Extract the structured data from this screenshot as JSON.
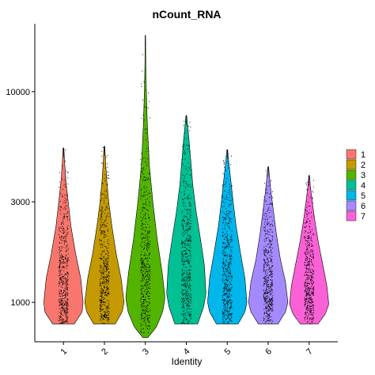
{
  "chart_data": {
    "type": "violin",
    "title": "nCount_RNA",
    "xlabel": "Identity",
    "ylabel": "",
    "y_scale": "log10",
    "ylim": [
      650,
      21000
    ],
    "y_ticks": [
      {
        "value": 1000,
        "label": "1000"
      },
      {
        "value": 3000,
        "label": "3000"
      },
      {
        "value": 10000,
        "label": "10000"
      }
    ],
    "categories": [
      "1",
      "2",
      "3",
      "4",
      "5",
      "6",
      "7"
    ],
    "colors": [
      "#F8766D",
      "#C49A00",
      "#53B400",
      "#00C094",
      "#00B6EB",
      "#A58AFF",
      "#FB61D7"
    ],
    "legend_position": "right",
    "grid": false,
    "series": [
      {
        "min": 790,
        "max": 5400,
        "points_max": 5400,
        "density": [
          [
            790,
            0.55
          ],
          [
            900,
            0.95
          ],
          [
            1000,
            1.0
          ],
          [
            1300,
            0.88
          ],
          [
            1700,
            0.62
          ],
          [
            2300,
            0.38
          ],
          [
            3000,
            0.24
          ],
          [
            3800,
            0.12
          ],
          [
            4600,
            0.06
          ],
          [
            5400,
            0.02
          ]
        ]
      },
      {
        "min": 790,
        "max": 5500,
        "points_max": 5500,
        "density": [
          [
            790,
            0.55
          ],
          [
            900,
            0.9
          ],
          [
            1000,
            1.0
          ],
          [
            1300,
            0.85
          ],
          [
            1700,
            0.6
          ],
          [
            2300,
            0.38
          ],
          [
            3000,
            0.22
          ],
          [
            3800,
            0.12
          ],
          [
            4600,
            0.06
          ],
          [
            5500,
            0.02
          ]
        ]
      },
      {
        "min": 680,
        "max": 18500,
        "points_max": 18500,
        "density": [
          [
            680,
            0.12
          ],
          [
            760,
            0.55
          ],
          [
            900,
            0.88
          ],
          [
            1050,
            1.0
          ],
          [
            1400,
            0.85
          ],
          [
            2000,
            0.6
          ],
          [
            3000,
            0.38
          ],
          [
            4500,
            0.2
          ],
          [
            7000,
            0.1
          ],
          [
            10000,
            0.05
          ],
          [
            14000,
            0.02
          ],
          [
            18500,
            0.01
          ]
        ]
      },
      {
        "min": 790,
        "max": 7700,
        "points_max": 7700,
        "density": [
          [
            790,
            0.58
          ],
          [
            950,
            0.88
          ],
          [
            1100,
            1.0
          ],
          [
            1500,
            0.92
          ],
          [
            2000,
            0.72
          ],
          [
            2700,
            0.5
          ],
          [
            3600,
            0.33
          ],
          [
            4800,
            0.22
          ],
          [
            6000,
            0.13
          ],
          [
            7000,
            0.06
          ],
          [
            7700,
            0.02
          ]
        ]
      },
      {
        "min": 790,
        "max": 5300,
        "points_max": 5300,
        "density": [
          [
            790,
            0.55
          ],
          [
            900,
            0.9
          ],
          [
            1000,
            1.0
          ],
          [
            1300,
            0.9
          ],
          [
            1700,
            0.68
          ],
          [
            2300,
            0.45
          ],
          [
            3000,
            0.3
          ],
          [
            3800,
            0.18
          ],
          [
            4600,
            0.08
          ],
          [
            5300,
            0.02
          ]
        ]
      },
      {
        "min": 790,
        "max": 4400,
        "points_max": 4400,
        "density": [
          [
            790,
            0.5
          ],
          [
            900,
            0.88
          ],
          [
            1000,
            1.0
          ],
          [
            1250,
            0.88
          ],
          [
            1600,
            0.62
          ],
          [
            2100,
            0.42
          ],
          [
            2700,
            0.27
          ],
          [
            3300,
            0.15
          ],
          [
            3900,
            0.07
          ],
          [
            4400,
            0.02
          ]
        ]
      },
      {
        "min": 790,
        "max": 4000,
        "points_max": 4000,
        "density": [
          [
            790,
            0.45
          ],
          [
            880,
            0.82
          ],
          [
            980,
            1.0
          ],
          [
            1200,
            0.9
          ],
          [
            1500,
            0.7
          ],
          [
            1900,
            0.48
          ],
          [
            2400,
            0.3
          ],
          [
            3000,
            0.16
          ],
          [
            3500,
            0.07
          ],
          [
            4000,
            0.02
          ]
        ]
      }
    ]
  }
}
